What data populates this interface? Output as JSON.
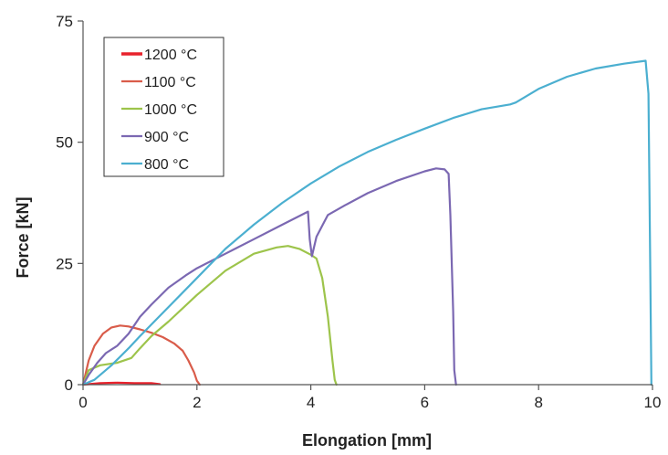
{
  "chart_data": {
    "type": "line",
    "title": "",
    "xlabel": "Elongation [mm]",
    "ylabel": "Force [kN]",
    "xlim": [
      0,
      10
    ],
    "ylim": [
      0,
      75
    ],
    "xticks": [
      0,
      2,
      4,
      6,
      8,
      10
    ],
    "yticks": [
      0,
      25,
      50,
      75
    ],
    "grid": false,
    "legend_position": "top-left",
    "series": [
      {
        "name": "1200 °C",
        "color": "#e8222c",
        "x": [
          0,
          0.3,
          0.6,
          0.9,
          1.2,
          1.35
        ],
        "y": [
          0,
          0.3,
          0.4,
          0.3,
          0.3,
          0.1
        ]
      },
      {
        "name": "1100 °C",
        "color": "#d95c4a",
        "x": [
          0,
          0.05,
          0.1,
          0.2,
          0.35,
          0.5,
          0.65,
          0.8,
          1.0,
          1.2,
          1.4,
          1.6,
          1.75,
          1.85,
          1.95,
          2.0,
          2.05
        ],
        "y": [
          0,
          2.5,
          5,
          8,
          10.5,
          11.8,
          12.2,
          12,
          11.4,
          10.7,
          9.8,
          8.5,
          7,
          5,
          2.5,
          0.8,
          0
        ]
      },
      {
        "name": "1000 °C",
        "color": "#9dc44b",
        "x": [
          0,
          0.1,
          0.3,
          0.6,
          0.85,
          1.0,
          1.2,
          1.5,
          2.0,
          2.5,
          3.0,
          3.4,
          3.6,
          3.8,
          4.0,
          4.1,
          4.2,
          4.3,
          4.38,
          4.42,
          4.45
        ],
        "y": [
          0,
          3,
          4,
          4.5,
          5.5,
          7.5,
          10,
          13,
          18.5,
          23.5,
          27,
          28.3,
          28.6,
          28,
          26.8,
          26,
          22,
          14,
          5,
          1,
          0
        ]
      },
      {
        "name": "900 °C",
        "color": "#7b68b2",
        "x": [
          0,
          0.1,
          0.25,
          0.4,
          0.6,
          0.8,
          1.0,
          1.2,
          1.5,
          1.8,
          2.0,
          2.5,
          3.0,
          3.5,
          3.95,
          3.98,
          4.02,
          4.1,
          4.3,
          4.6,
          5.0,
          5.5,
          6.0,
          6.2,
          6.35,
          6.42,
          6.45,
          6.5,
          6.52,
          6.55
        ],
        "y": [
          0,
          2,
          4.5,
          6.5,
          8,
          10.5,
          14,
          16.5,
          20,
          22.5,
          24,
          27,
          30,
          33,
          35.7,
          30,
          26.5,
          30.5,
          35,
          37,
          39.5,
          42,
          44,
          44.6,
          44.4,
          43.5,
          35,
          15,
          3,
          0
        ]
      },
      {
        "name": "800 °C",
        "color": "#4bafd0",
        "x": [
          0,
          0.2,
          0.5,
          0.8,
          1.0,
          1.5,
          2.0,
          2.5,
          3.0,
          3.5,
          4.0,
          4.5,
          5.0,
          5.5,
          6.0,
          6.5,
          7.0,
          7.5,
          7.6,
          8.0,
          8.5,
          9.0,
          9.5,
          9.88,
          9.93,
          9.96,
          9.98
        ],
        "y": [
          0,
          1,
          4,
          7.5,
          10,
          16,
          22,
          28,
          33,
          37.5,
          41.5,
          45,
          48,
          50.5,
          52.8,
          55,
          56.8,
          57.8,
          58.2,
          61,
          63.5,
          65.2,
          66.2,
          66.8,
          60,
          25,
          0
        ]
      }
    ]
  }
}
